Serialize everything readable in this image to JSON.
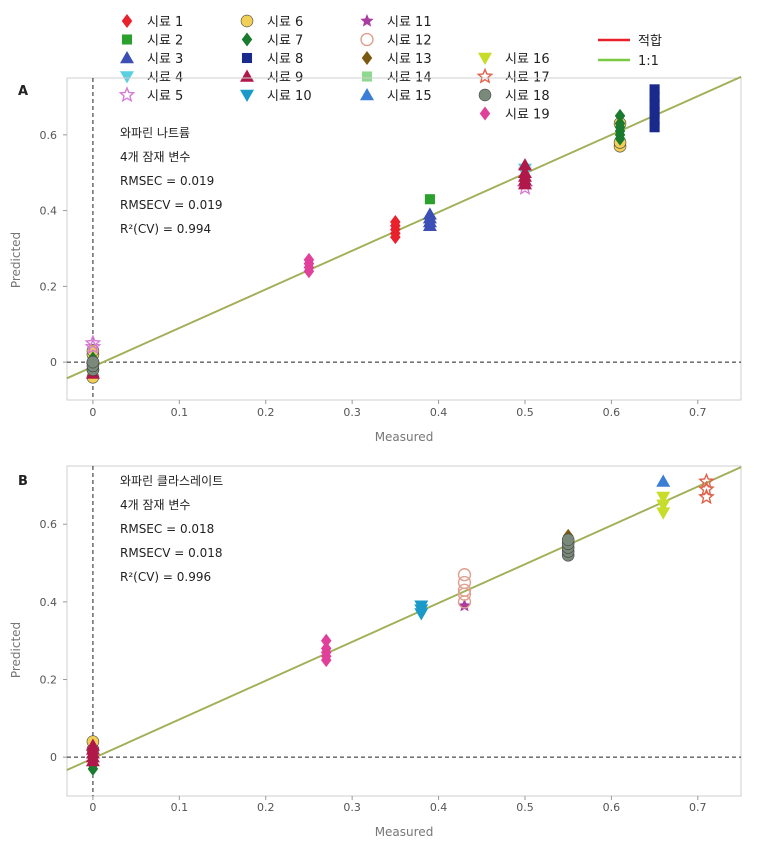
{
  "legend": {
    "samples": [
      {
        "label": "시료 1",
        "shape": "diamond",
        "color": "#e8212b"
      },
      {
        "label": "시료 2",
        "shape": "square",
        "color": "#2ca02c"
      },
      {
        "label": "시료 3",
        "shape": "triangle-up",
        "color": "#3c4fb5"
      },
      {
        "label": "시료 4",
        "shape": "triangle-down",
        "color": "#5ccfe0"
      },
      {
        "label": "시료 5",
        "shape": "star-open",
        "color": "#d67cd6"
      },
      {
        "label": "시료 6",
        "shape": "circle",
        "color": "#f2d057"
      },
      {
        "label": "시료 7",
        "shape": "diamond",
        "color": "#1a7a2e"
      },
      {
        "label": "시료 8",
        "shape": "square",
        "color": "#1a2a8c"
      },
      {
        "label": "시료 9",
        "shape": "triangle-up",
        "color": "#b0184a"
      },
      {
        "label": "시료 10",
        "shape": "triangle-down",
        "color": "#1b9ac9"
      },
      {
        "label": "시료 11",
        "shape": "star",
        "color": "#a83ca0"
      },
      {
        "label": "시료 12",
        "shape": "circle-open",
        "color": "#e0a090"
      },
      {
        "label": "시료 13",
        "shape": "diamond",
        "color": "#7a5a10"
      },
      {
        "label": "시료 14",
        "shape": "square",
        "color": "#8fd88f"
      },
      {
        "label": "시료 15",
        "shape": "triangle-up",
        "color": "#3a7fd5"
      },
      {
        "label": "시료 16",
        "shape": "triangle-down",
        "color": "#c8dc2a"
      },
      {
        "label": "시료 17",
        "shape": "star-open",
        "color": "#e0604a"
      },
      {
        "label": "시료 18",
        "shape": "circle",
        "color": "#7a8a7a"
      },
      {
        "label": "시료 19",
        "shape": "diamond",
        "color": "#e0409a"
      }
    ],
    "lines": [
      {
        "label": "적합",
        "color": "#e8212b"
      },
      {
        "label": "1:1",
        "color": "#7ac943"
      }
    ]
  },
  "chart_data": [
    {
      "panel": "A",
      "type": "scatter",
      "xlabel": "Measured",
      "ylabel": "Predicted",
      "xlim": [
        -0.03,
        0.75
      ],
      "ylim": [
        -0.1,
        0.75
      ],
      "xticks": [
        "0",
        "0.1",
        "0.2",
        "0.3",
        "0.4",
        "0.5",
        "0.6",
        "0.7"
      ],
      "yticks": [
        "0",
        "0.2",
        "0.4",
        "0.6"
      ],
      "annotations": [
        "와파린 나트륨",
        "4개 잠재 변수",
        "RMSEC = 0.019",
        "RMSECV = 0.019",
        "R²(CV) = 0.994"
      ],
      "fit_line": {
        "intercept": -0.012,
        "slope": 1.02
      },
      "one_to_one": {
        "intercept": -0.012,
        "slope": 1.02
      },
      "groups": [
        {
          "sample": "시료 6",
          "x": 0,
          "y": [
            -0.04,
            -0.02,
            0.0,
            0.02,
            0.03
          ]
        },
        {
          "sample": "시료 5",
          "x": 0,
          "y": [
            0.04,
            0.05
          ]
        },
        {
          "sample": "시료 9",
          "x": 0,
          "y": [
            -0.03,
            0.01
          ]
        },
        {
          "sample": "시료 7",
          "x": 0,
          "y": [
            0.0,
            0.01
          ]
        },
        {
          "sample": "시료 18",
          "x": 0,
          "y": [
            -0.02,
            -0.01,
            0.0
          ]
        },
        {
          "sample": "시료 19",
          "x": 0.25,
          "y": [
            0.24,
            0.25,
            0.26,
            0.27
          ]
        },
        {
          "sample": "시료 1",
          "x": 0.35,
          "y": [
            0.33,
            0.34,
            0.35,
            0.36,
            0.37
          ]
        },
        {
          "sample": "시료 2",
          "x": 0.39,
          "y": [
            0.43
          ]
        },
        {
          "sample": "시료 3",
          "x": 0.39,
          "y": [
            0.36,
            0.37,
            0.38,
            0.39
          ]
        },
        {
          "sample": "시료 5",
          "x": 0.5,
          "y": [
            0.46
          ]
        },
        {
          "sample": "시료 4",
          "x": 0.5,
          "y": [
            0.5,
            0.51
          ]
        },
        {
          "sample": "시료 9",
          "x": 0.5,
          "y": [
            0.47,
            0.48,
            0.49,
            0.5,
            0.52
          ]
        },
        {
          "sample": "시료 6",
          "x": 0.61,
          "y": [
            0.57,
            0.58,
            0.63
          ]
        },
        {
          "sample": "시료 7",
          "x": 0.61,
          "y": [
            0.59,
            0.6,
            0.61,
            0.62,
            0.63,
            0.65
          ]
        },
        {
          "sample": "시료 8",
          "x": 0.65,
          "y": [
            0.62,
            0.64,
            0.66,
            0.68,
            0.7,
            0.72
          ]
        }
      ]
    },
    {
      "panel": "B",
      "type": "scatter",
      "xlabel": "Measured",
      "ylabel": "Predicted",
      "xlim": [
        -0.03,
        0.75
      ],
      "ylim": [
        -0.1,
        0.75
      ],
      "xticks": [
        "0",
        "0.1",
        "0.2",
        "0.3",
        "0.4",
        "0.5",
        "0.6",
        "0.7"
      ],
      "yticks": [
        "0",
        "0.2",
        "0.4",
        "0.6"
      ],
      "annotations": [
        "와파린 클라스레이트",
        "4개 잠재 변수",
        "RMSEC = 0.018",
        "RMSECV = 0.018",
        "R²(CV) = 0.996"
      ],
      "fit_line": {
        "intercept": -0.003,
        "slope": 1.0
      },
      "one_to_one": {
        "intercept": -0.003,
        "slope": 1.0
      },
      "groups": [
        {
          "sample": "시료 6",
          "x": 0,
          "y": [
            0.02,
            0.04
          ]
        },
        {
          "sample": "시료 7",
          "x": 0,
          "y": [
            -0.03,
            -0.02
          ]
        },
        {
          "sample": "시료 9",
          "x": 0,
          "y": [
            -0.01,
            0.0,
            0.01,
            0.02,
            0.03
          ]
        },
        {
          "sample": "시료 19",
          "x": 0.27,
          "y": [
            0.25,
            0.26,
            0.27,
            0.28,
            0.3
          ]
        },
        {
          "sample": "시료 10",
          "x": 0.38,
          "y": [
            0.37,
            0.38,
            0.39
          ]
        },
        {
          "sample": "시료 11",
          "x": 0.43,
          "y": [
            0.39
          ]
        },
        {
          "sample": "시료 12",
          "x": 0.43,
          "y": [
            0.4,
            0.42,
            0.43,
            0.45,
            0.47
          ]
        },
        {
          "sample": "시료 13",
          "x": 0.55,
          "y": [
            0.57
          ]
        },
        {
          "sample": "시료 18",
          "x": 0.55,
          "y": [
            0.52,
            0.53,
            0.54,
            0.55,
            0.56
          ]
        },
        {
          "sample": "시료 16",
          "x": 0.66,
          "y": [
            0.63,
            0.65,
            0.67
          ]
        },
        {
          "sample": "시료 15",
          "x": 0.66,
          "y": [
            0.71
          ]
        },
        {
          "sample": "시료 17",
          "x": 0.71,
          "y": [
            0.67,
            0.69,
            0.71
          ]
        }
      ]
    }
  ]
}
